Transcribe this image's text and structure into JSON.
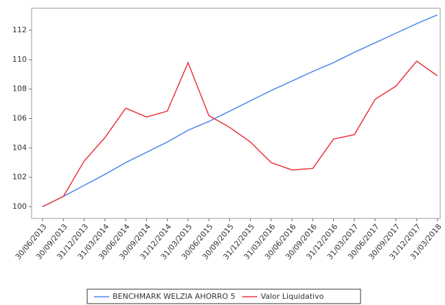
{
  "chart_data": {
    "type": "line",
    "categories": [
      "30/06/2013",
      "30/09/2013",
      "31/12/2013",
      "31/03/2014",
      "30/06/2014",
      "30/09/2014",
      "31/12/2014",
      "31/03/2015",
      "30/06/2015",
      "30/09/2015",
      "31/12/2015",
      "31/03/2016",
      "30/06/2016",
      "30/09/2016",
      "31/12/2016",
      "31/03/2017",
      "30/06/2017",
      "30/09/2017",
      "31/12/2017",
      "31/03/2018"
    ],
    "series": [
      {
        "name": "BENCHMARK WELZIA AHORRO 5",
        "color": "#4a86e8",
        "values": [
          100,
          100.7,
          101.45,
          102.2,
          103.0,
          103.7,
          104.4,
          105.2,
          105.8,
          106.5,
          107.2,
          107.9,
          108.55,
          109.2,
          109.8,
          110.5,
          111.15,
          111.8,
          112.45,
          113.05
        ]
      },
      {
        "name": "Valor Liquidativo",
        "color": "#e8333a",
        "values": [
          100,
          100.7,
          103.1,
          104.7,
          106.7,
          106.1,
          106.5,
          109.8,
          106.2,
          105.4,
          104.4,
          103.0,
          102.5,
          102.6,
          104.6,
          104.9,
          107.3,
          108.2,
          109.9,
          108.9
        ]
      }
    ],
    "ylim": [
      99.2,
      113.5
    ],
    "yticks": [
      100,
      102,
      104,
      106,
      108,
      110,
      112
    ],
    "grid": false
  }
}
